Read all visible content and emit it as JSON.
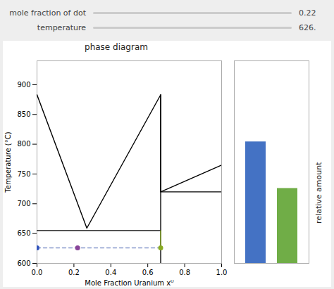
{
  "chart_data": [
    {
      "type": "line",
      "title": "phase diagram",
      "xlabel": "Mole Fraction Uranium xᵁ",
      "ylabel": "Temperature (°C)",
      "xlim": [
        0.0,
        1.0
      ],
      "ylim": [
        600,
        940
      ],
      "xticks": [
        {
          "value": 0.0,
          "label": "0.0"
        },
        0.2,
        0.4,
        0.6,
        0.8,
        {
          "value": 1.0,
          "label": "1.0"
        }
      ],
      "yticks": [
        600,
        650,
        700,
        750,
        800,
        850,
        900
      ],
      "grid": false,
      "annotations": [
        "mole fraction of dot",
        "0.22",
        "temperature",
        "626."
      ],
      "series": [
        {
          "type": "line",
          "color": "#000000",
          "line_style": "solid",
          "x": [
            0.0,
            0.27,
            0.67,
            0.67,
            1.0
          ],
          "values": [
            883,
            659,
            883,
            720,
            765
          ]
        },
        {
          "type": "line",
          "color": "#000000",
          "line_style": "solid",
          "x": [
            0.0,
            0.67
          ],
          "values": [
            655,
            655
          ]
        },
        {
          "type": "line",
          "color": "#000000",
          "line_style": "solid",
          "x": [
            0.67,
            1.0
          ],
          "values": [
            720,
            720
          ]
        },
        {
          "type": "line",
          "color": "#000000",
          "line_style": "solid",
          "x": [
            0.67,
            0.67
          ],
          "values": [
            600,
            883
          ]
        },
        {
          "type": "line",
          "color": "#8899cc",
          "line_style": "dashed",
          "x": [
            0.0,
            0.67
          ],
          "values": [
            626,
            626
          ]
        },
        {
          "type": "line",
          "color": "#88aa22",
          "line_style": "solid",
          "x": [
            0.67,
            0.67
          ],
          "values": [
            626,
            655
          ]
        },
        {
          "type": "scatter",
          "color": "#3355bb",
          "marker": "circle",
          "x": [
            0.0
          ],
          "values": [
            626
          ]
        },
        {
          "type": "scatter",
          "color": "#884499",
          "marker": "circle",
          "x": [
            0.22
          ],
          "values": [
            626
          ]
        },
        {
          "type": "scatter",
          "color": "#88aa22",
          "marker": "circle",
          "x": [
            0.67
          ],
          "values": [
            626
          ]
        }
      ]
    },
    {
      "type": "bar",
      "ylabel": "relative amount",
      "categories": [
        null,
        null
      ],
      "values": [
        0.6,
        0.37
      ],
      "colors": [
        "#4472C4",
        "#70AD47"
      ],
      "ylim": [
        0,
        1.0
      ],
      "tick_labels": false,
      "grid": false
    }
  ]
}
